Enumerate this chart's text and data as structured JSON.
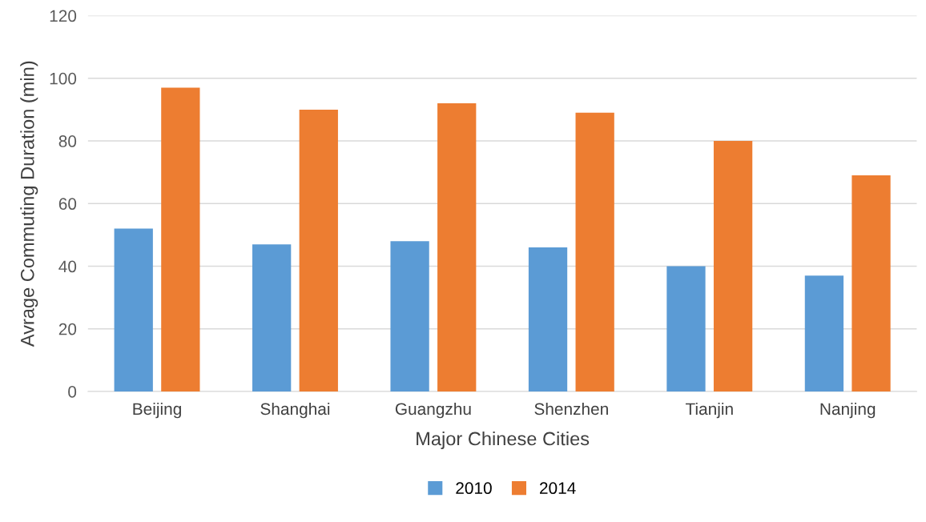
{
  "chart_data": {
    "type": "bar",
    "xlabel": "Major Chinese Cities",
    "ylabel": "Avrage Commuting Duration (min)",
    "categories": [
      "Beijing",
      "Shanghai",
      "Guangzhu",
      "Shenzhen",
      "Tianjin",
      "Nanjing"
    ],
    "series": [
      {
        "name": "2010",
        "color": "#5b9bd5",
        "values": [
          52,
          47,
          48,
          46,
          40,
          37
        ]
      },
      {
        "name": "2014",
        "color": "#ed7d31",
        "values": [
          97,
          90,
          92,
          89,
          80,
          69
        ]
      }
    ],
    "ylim": [
      0,
      120
    ],
    "yticks": [
      0,
      20,
      40,
      60,
      80,
      100,
      120
    ],
    "grid": "y",
    "legend": "bottom"
  }
}
